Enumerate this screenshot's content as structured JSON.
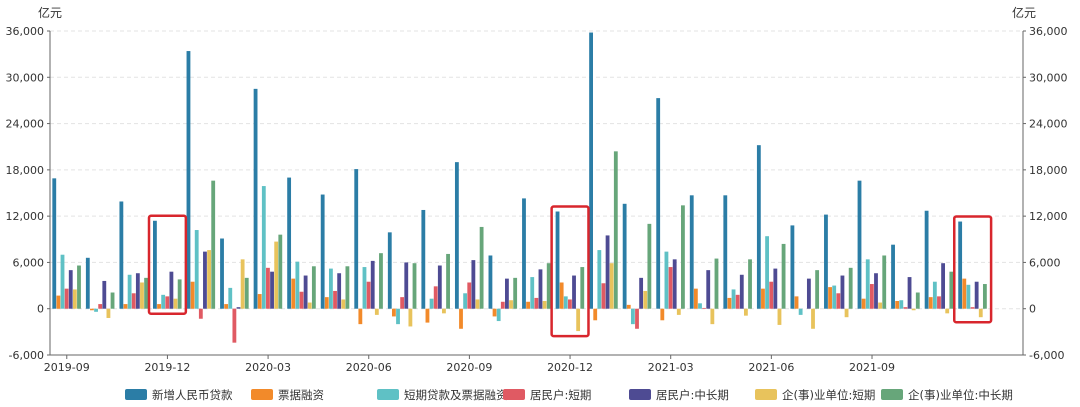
{
  "chart_data": {
    "type": "bar",
    "unit_left": "亿元",
    "unit_right": "亿元",
    "ylim": [
      -6000,
      36000
    ],
    "yticks": [
      -6000,
      0,
      6000,
      12000,
      18000,
      24000,
      30000,
      36000
    ],
    "ytick_labels": [
      "-6,000",
      "0",
      "6,000",
      "12,000",
      "18,000",
      "24,000",
      "30,000",
      "36,000"
    ],
    "grid": true,
    "legend_position": "bottom",
    "categories": [
      "2019-09",
      "2019-10",
      "2019-11",
      "2019-12",
      "2020-01",
      "2020-02",
      "2020-03",
      "2020-04",
      "2020-05",
      "2020-06",
      "2020-07",
      "2020-08",
      "2020-09",
      "2020-10",
      "2020-11",
      "2020-12",
      "2021-01",
      "2021-02",
      "2021-03",
      "2021-04",
      "2021-05",
      "2021-06",
      "2021-07",
      "2021-08",
      "2021-09",
      "2021-10",
      "2021-11",
      "2021-12",
      "2022-01"
    ],
    "x_tick_labels": [
      {
        "category": "2019-09",
        "label": "2019-09"
      },
      {
        "category": "2019-12",
        "label": "2019-12"
      },
      {
        "category": "2020-03",
        "label": "2020-03"
      },
      {
        "category": "2020-06",
        "label": "2020-06"
      },
      {
        "category": "2020-09",
        "label": "2020-09"
      },
      {
        "category": "2020-12",
        "label": "2020-12"
      },
      {
        "category": "2021-03",
        "label": "2021-03"
      },
      {
        "category": "2021-06",
        "label": "2021-06"
      },
      {
        "category": "2021-09",
        "label": "2021-09"
      }
    ],
    "highlight_categories": [
      "2019-12",
      "2020-12",
      "2021-12"
    ],
    "series": [
      {
        "name": "新增人民币贷款",
        "color": "#2b7da6",
        "values": [
          16900,
          6600,
          13900,
          11400,
          33400,
          9100,
          28500,
          17000,
          14800,
          18100,
          9900,
          12800,
          19000,
          6900,
          14300,
          12600,
          35800,
          13600,
          27300,
          14700,
          14700,
          21200,
          10800,
          12200,
          16600,
          8300,
          12700,
          11300,
          0
        ]
      },
      {
        "name": "票据融资",
        "color": "#f28a2a",
        "values": [
          1700,
          -200,
          600,
          600,
          3500,
          600,
          1900,
          3900,
          1500,
          -2000,
          -1000,
          -1800,
          -2600,
          -1000,
          900,
          3400,
          -1500,
          500,
          -1500,
          2600,
          1400,
          2600,
          1600,
          2800,
          1300,
          1000,
          1500,
          3900,
          0
        ]
      },
      {
        "name": "短期贷款及票据融资",
        "color": "#5fc1c5",
        "values": [
          7000,
          -400,
          4400,
          1800,
          10200,
          2700,
          15900,
          6100,
          5200,
          5400,
          -2000,
          1300,
          2000,
          -1600,
          4100,
          1600,
          7600,
          -2000,
          7400,
          700,
          2500,
          9400,
          -800,
          3000,
          6400,
          1100,
          3500,
          3100,
          0
        ]
      },
      {
        "name": "居民户:短期",
        "color": "#e05a63",
        "values": [
          2600,
          600,
          2000,
          1600,
          -1300,
          -4400,
          5300,
          2200,
          2300,
          3500,
          1500,
          2900,
          3400,
          900,
          1400,
          1200,
          3300,
          -2600,
          5400,
          100,
          1800,
          3500,
          0,
          2000,
          3200,
          200,
          1600,
          200,
          0
        ]
      },
      {
        "name": "居民户:中长期",
        "color": "#4e4b93",
        "values": [
          5000,
          3600,
          4600,
          4800,
          7400,
          200,
          4800,
          4300,
          4600,
          6200,
          6000,
          5600,
          6300,
          3900,
          5100,
          4300,
          9500,
          4000,
          6400,
          5000,
          4400,
          5200,
          3900,
          4300,
          4600,
          4100,
          5900,
          3500,
          0
        ]
      },
      {
        "name": "企(事)业单位:短期",
        "color": "#e8c35c",
        "values": [
          2500,
          -1200,
          3400,
          1300,
          7600,
          6400,
          8700,
          800,
          1200,
          -800,
          -2300,
          -600,
          1200,
          1100,
          1000,
          -2900,
          5900,
          2300,
          -800,
          -2000,
          -900,
          -2100,
          -2600,
          -1100,
          800,
          -200,
          -600,
          -1100,
          0
        ]
      },
      {
        "name": "企(事)业单位:中长期",
        "color": "#67a67a",
        "values": [
          5600,
          2100,
          4000,
          3800,
          16600,
          4000,
          9600,
          5500,
          5500,
          7200,
          5900,
          7100,
          10600,
          4000,
          5900,
          5400,
          20400,
          11000,
          13400,
          6500,
          6400,
          8400,
          5000,
          5300,
          6900,
          2100,
          4800,
          3200,
          0
        ]
      }
    ]
  }
}
